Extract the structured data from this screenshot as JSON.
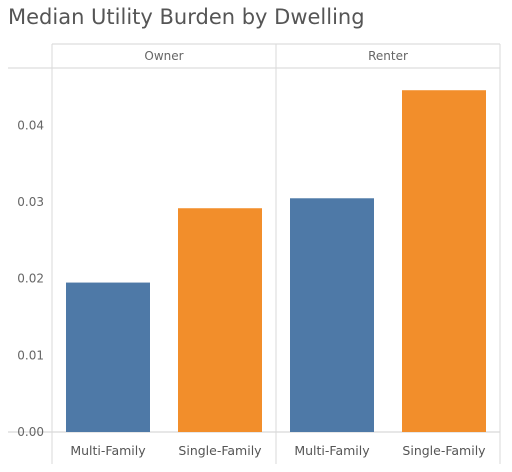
{
  "chart_data": {
    "type": "bar",
    "title": "Median Utility Burden by Dwelling",
    "panels": [
      "Owner",
      "Renter"
    ],
    "categories": [
      "Multi-Family",
      "Single-Family"
    ],
    "values": [
      [
        0.0195,
        0.0292
      ],
      [
        0.0305,
        0.0446
      ]
    ],
    "colors": {
      "Multi-Family": "#4e79a7",
      "Single-Family": "#f28e2b"
    },
    "ylim": [
      0,
      0.0475
    ],
    "yticks": [
      0,
      0.01,
      0.02,
      0.03,
      0.04
    ],
    "ytick_labels": [
      "0.00",
      "0.01",
      "0.02",
      "0.03",
      "0.04"
    ],
    "grid": false
  }
}
